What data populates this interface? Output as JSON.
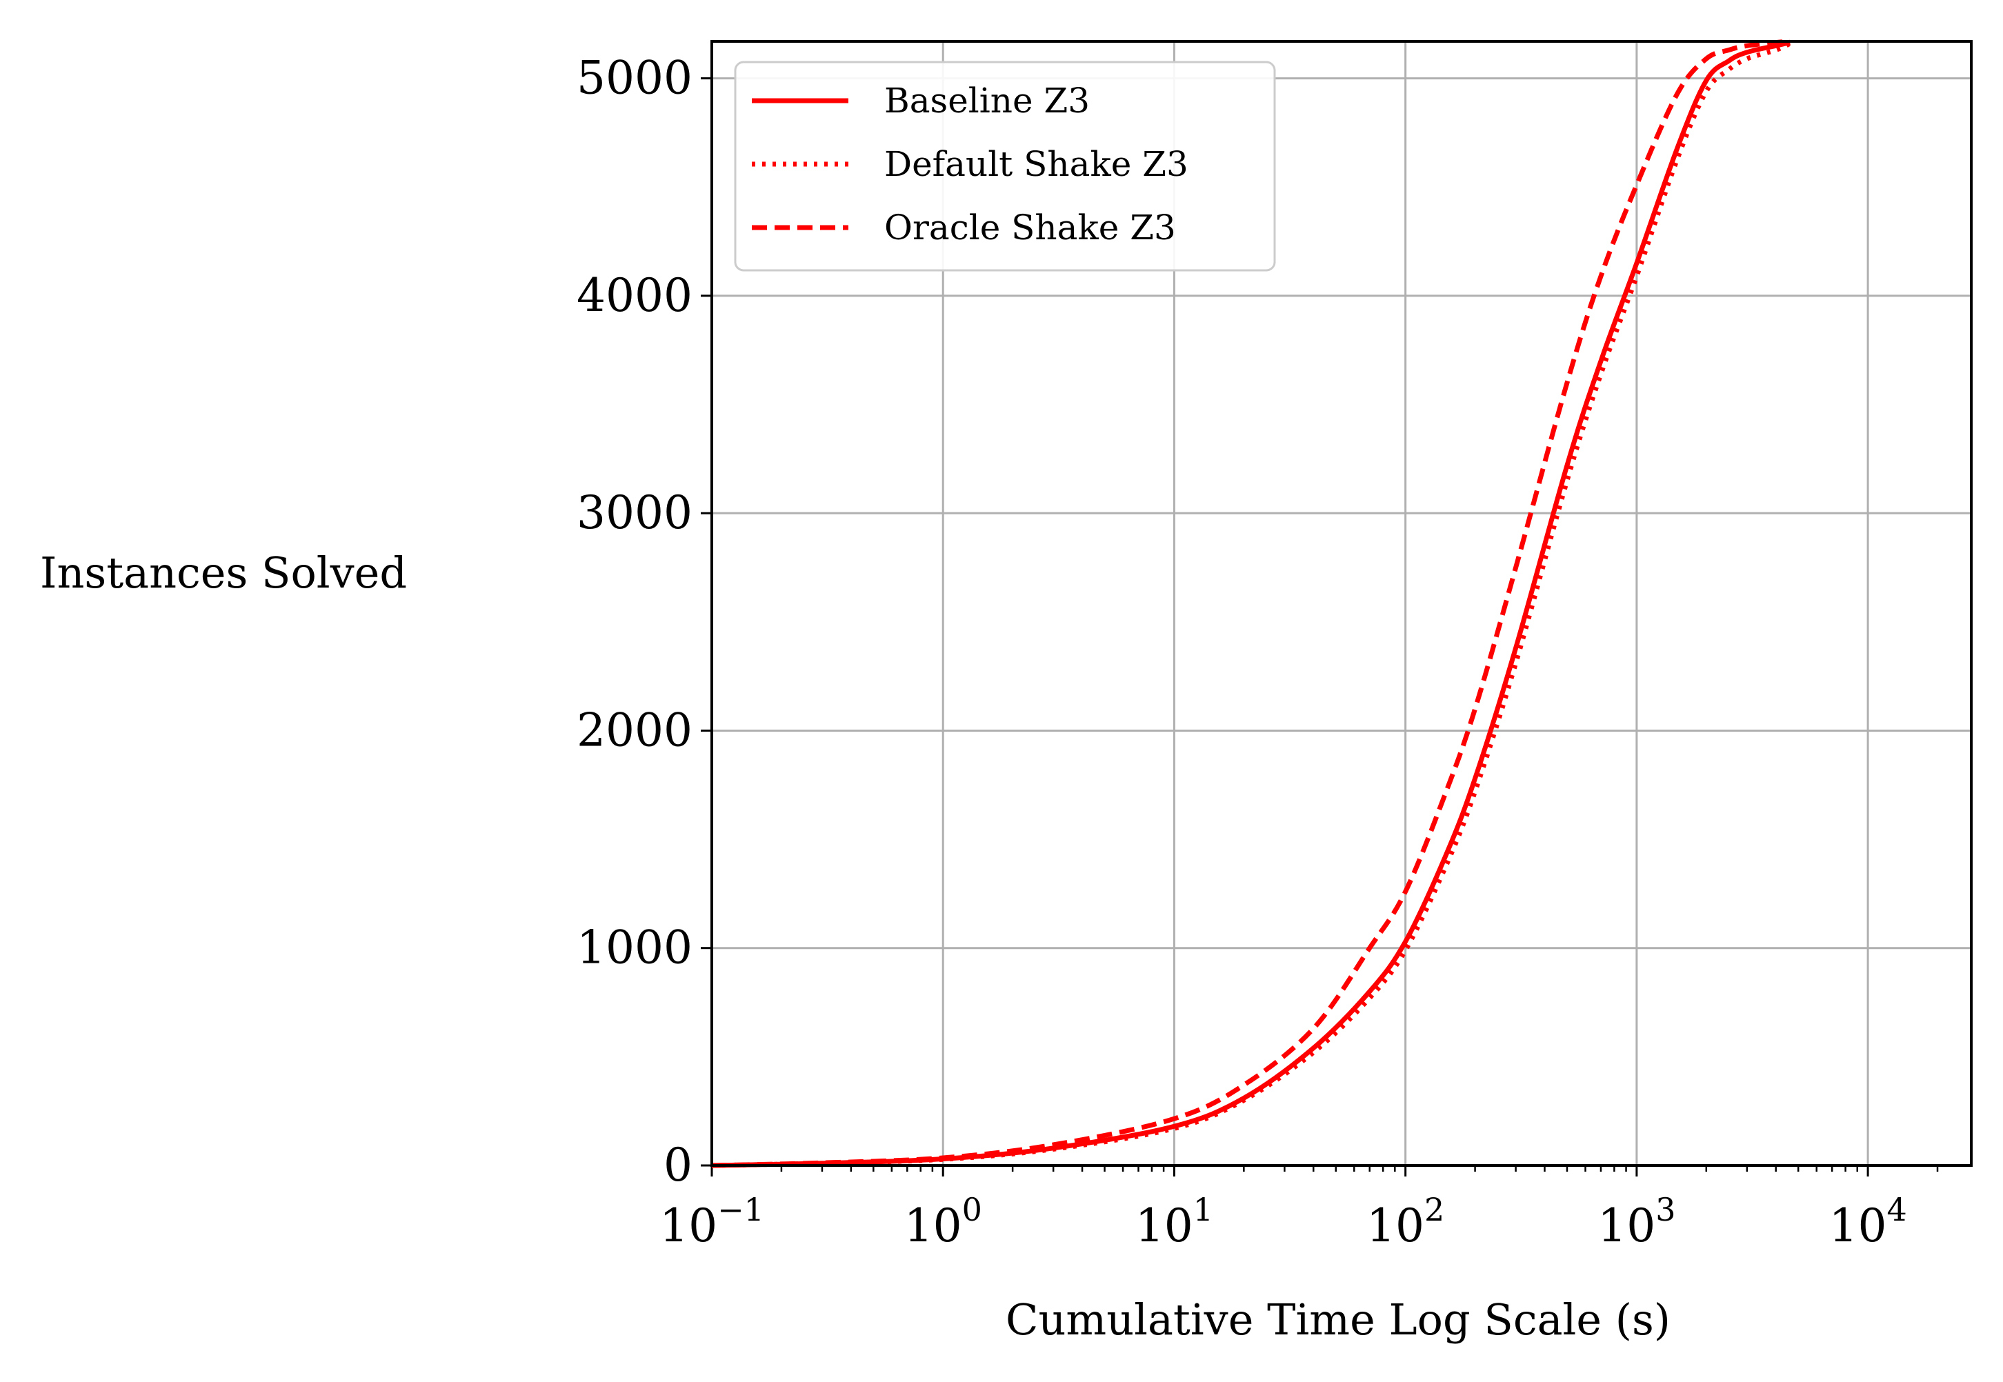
{
  "chart_data": {
    "type": "line",
    "title": "",
    "xlabel": "Cumulative Time Log Scale (s)",
    "ylabel": "Instances Solved",
    "xscale": "log",
    "xlim": [
      0.1,
      28000
    ],
    "ylim": [
      0,
      5170
    ],
    "grid": true,
    "legend_position": "top-left",
    "line_color": "#ff0000",
    "x_ticks": [
      {
        "base": "10",
        "exp": "−1",
        "value": 0.1
      },
      {
        "base": "10",
        "exp": "0",
        "value": 1
      },
      {
        "base": "10",
        "exp": "1",
        "value": 10
      },
      {
        "base": "10",
        "exp": "2",
        "value": 100
      },
      {
        "base": "10",
        "exp": "3",
        "value": 1000
      },
      {
        "base": "10",
        "exp": "4",
        "value": 10000
      }
    ],
    "y_ticks": [
      {
        "label": "0",
        "value": 0
      },
      {
        "label": "1000",
        "value": 1000
      },
      {
        "label": "2000",
        "value": 2000
      },
      {
        "label": "3000",
        "value": 3000
      },
      {
        "label": "4000",
        "value": 4000
      },
      {
        "label": "5000",
        "value": 5000
      }
    ],
    "series": [
      {
        "name": "Baseline Z3",
        "style": "solid",
        "x": [
          0.1,
          0.3,
          1,
          3,
          10,
          20,
          40,
          70,
          100,
          150,
          200,
          300,
          500,
          700,
          1000,
          1500,
          2000,
          2500,
          3000,
          4000,
          4600
        ],
        "y": [
          0,
          10,
          30,
          80,
          180,
          310,
          540,
          800,
          1030,
          1430,
          1780,
          2380,
          3220,
          3700,
          4150,
          4680,
          4990,
          5080,
          5120,
          5150,
          5165
        ]
      },
      {
        "name": "Default Shake Z3",
        "style": "dotted",
        "x": [
          0.1,
          0.3,
          1,
          3,
          10,
          20,
          40,
          70,
          100,
          150,
          200,
          300,
          500,
          700,
          1000,
          1500,
          2000,
          2500,
          3000,
          4000,
          4600
        ],
        "y": [
          0,
          10,
          28,
          75,
          170,
          300,
          520,
          770,
          990,
          1380,
          1720,
          2310,
          3150,
          3640,
          4090,
          4630,
          4940,
          5040,
          5090,
          5130,
          5160
        ]
      },
      {
        "name": "Oracle Shake Z3",
        "style": "dashed",
        "x": [
          0.1,
          0.3,
          1,
          3,
          10,
          20,
          40,
          70,
          100,
          150,
          200,
          300,
          500,
          700,
          1000,
          1500,
          2000,
          2500,
          3000,
          4000,
          4600
        ],
        "y": [
          0,
          12,
          35,
          95,
          215,
          370,
          630,
          1000,
          1260,
          1720,
          2100,
          2750,
          3600,
          4090,
          4510,
          4930,
          5090,
          5130,
          5150,
          5165,
          5170
        ]
      }
    ]
  }
}
